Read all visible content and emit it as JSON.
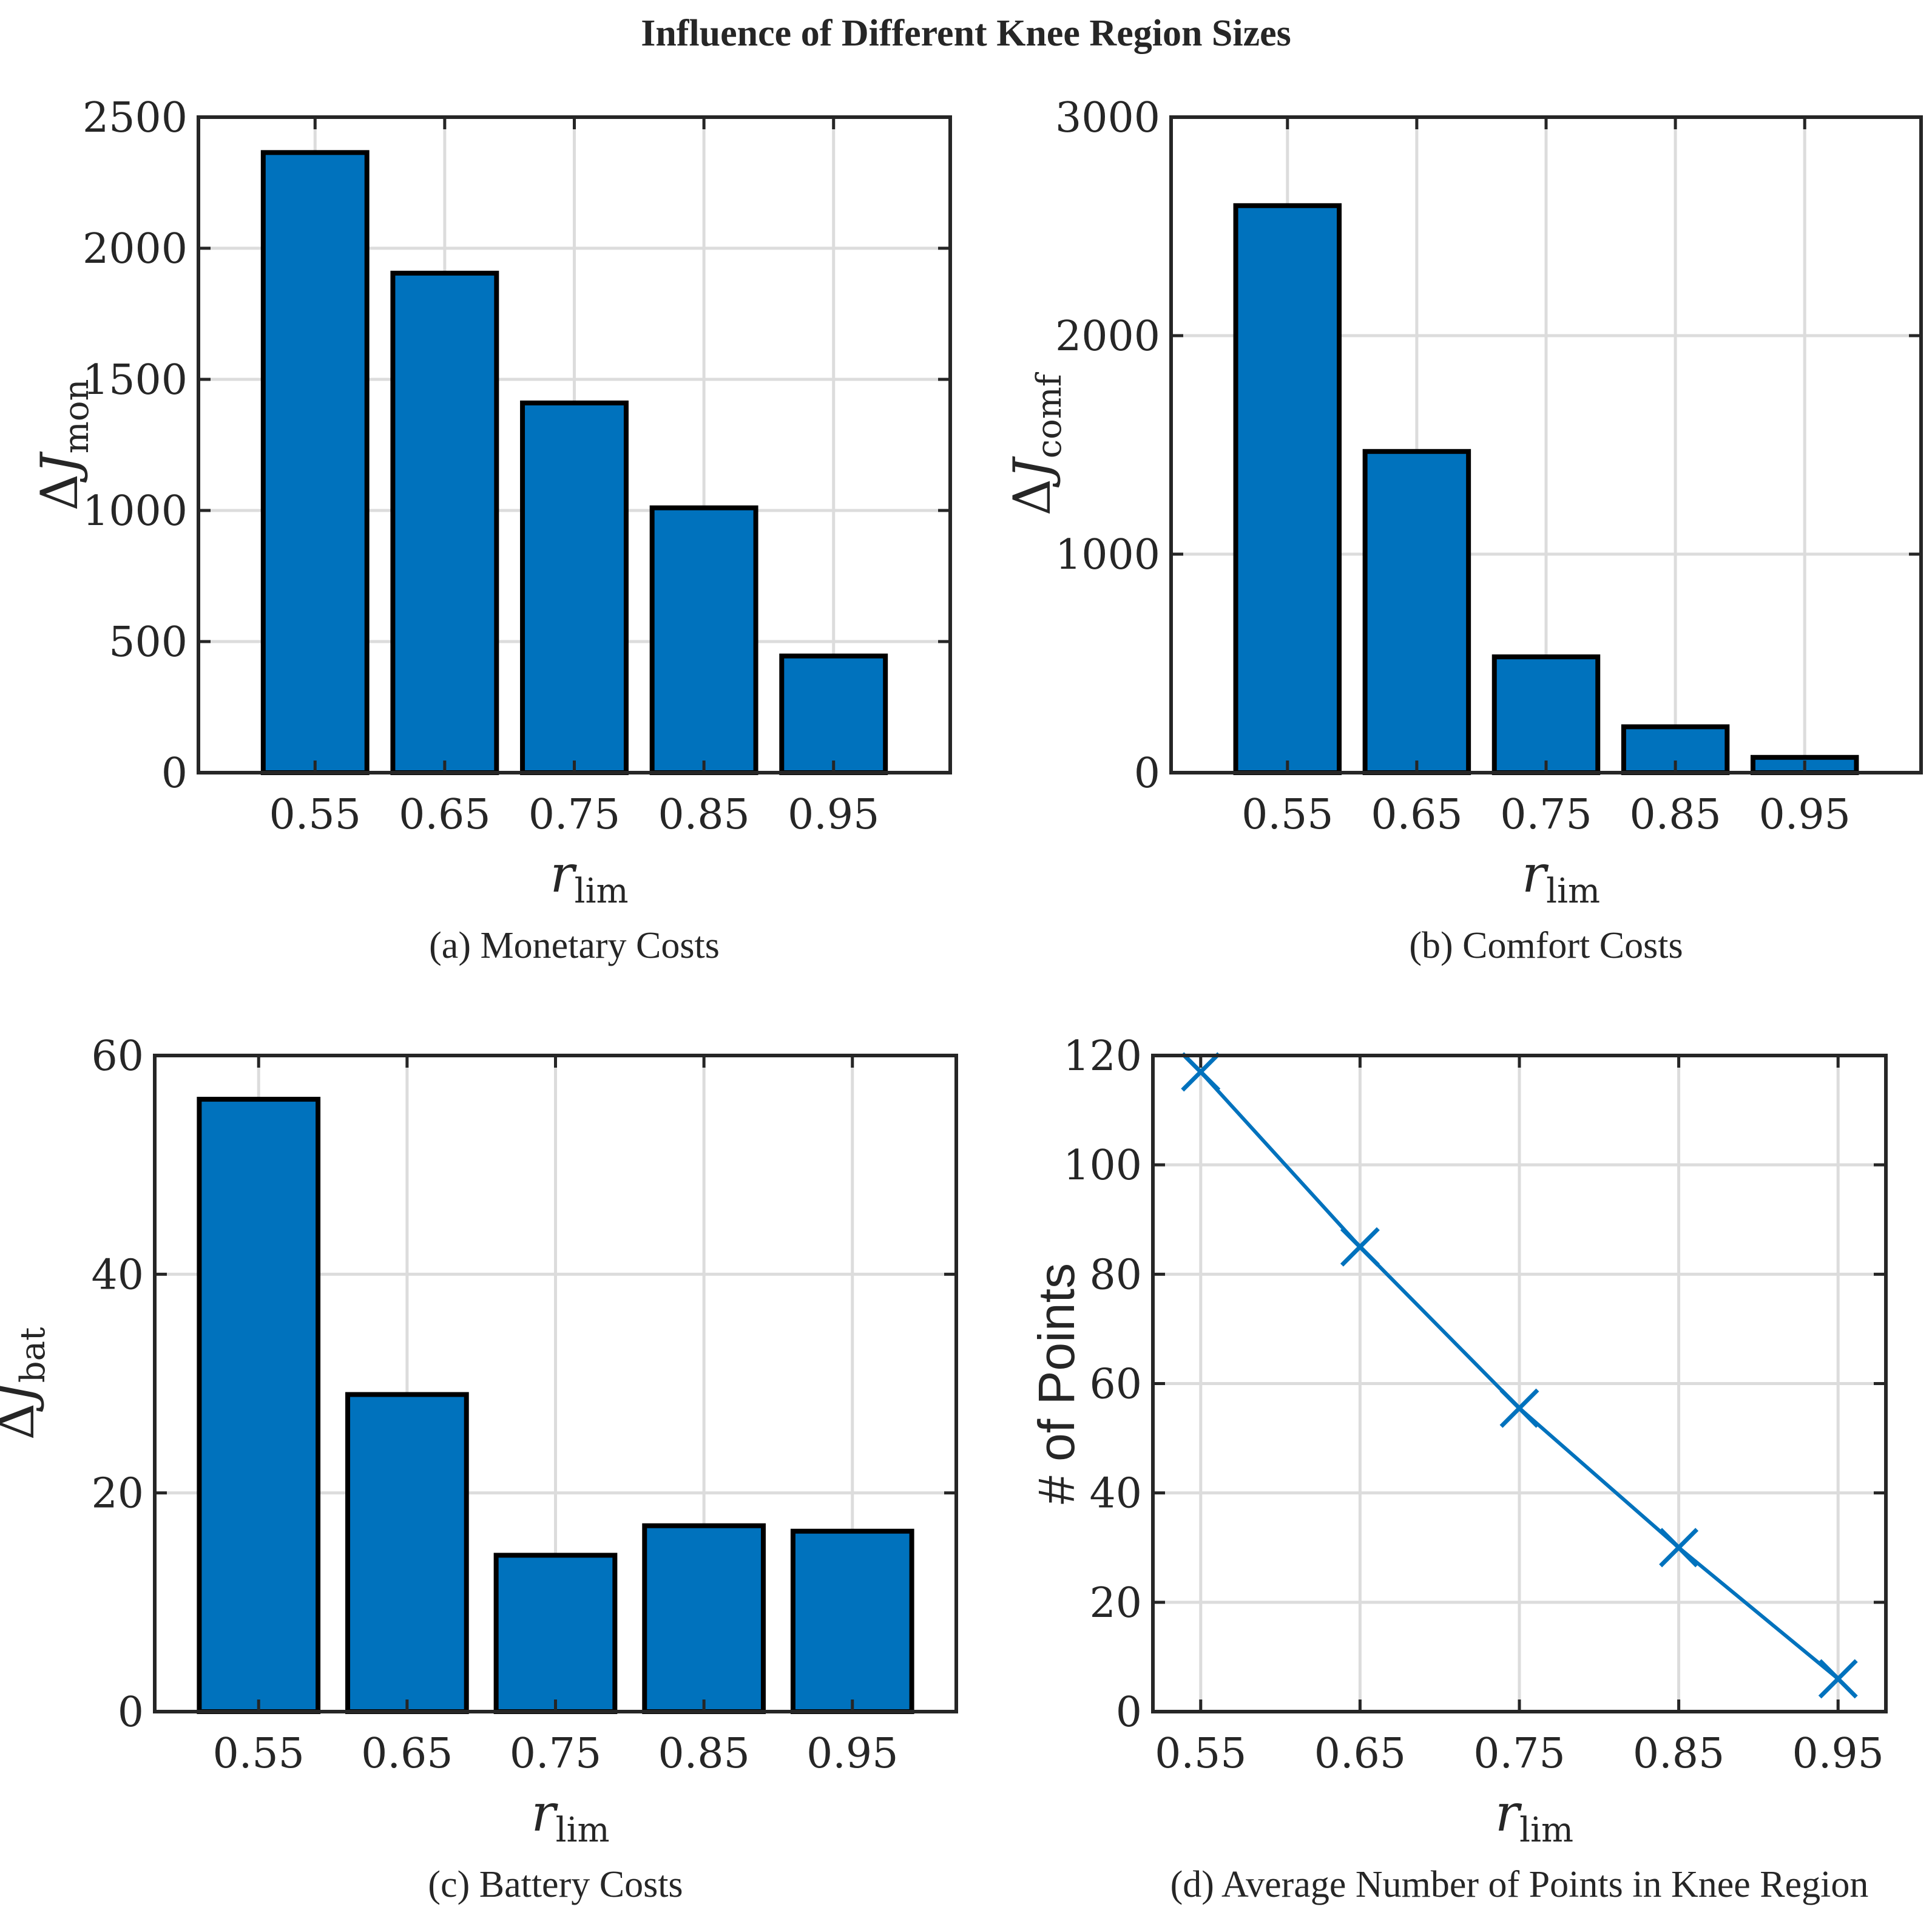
{
  "figure_title": "Influence of Different Knee Region Sizes",
  "colors": {
    "bar": "#0072BD",
    "line": "#0072BD",
    "axis": "#262626",
    "grid": "#dcdcdc"
  },
  "chart_data": [
    {
      "id": "a",
      "type": "bar",
      "caption": "(a)  Monetary Costs",
      "categories": [
        "0.55",
        "0.65",
        "0.75",
        "0.85",
        "0.95"
      ],
      "values": [
        2365,
        1905,
        1410,
        1010,
        445
      ],
      "ylim": [
        0,
        2500
      ],
      "yticks": [
        0,
        500,
        1000,
        1500,
        2000,
        2500
      ],
      "xlabel": {
        "main": "r",
        "sub": "lim"
      },
      "ylabel": {
        "prefix": "Δ",
        "main": "J",
        "sub": "mon"
      },
      "grid": true
    },
    {
      "id": "b",
      "type": "bar",
      "caption": "(b)  Comfort Costs",
      "categories": [
        "0.55",
        "0.65",
        "0.75",
        "0.85",
        "0.95"
      ],
      "values": [
        2595,
        1470,
        530,
        210,
        70
      ],
      "ylim": [
        0,
        3000
      ],
      "yticks": [
        0,
        1000,
        2000,
        3000
      ],
      "xlabel": {
        "main": "r",
        "sub": "lim"
      },
      "ylabel": {
        "prefix": "Δ",
        "main": "J",
        "sub": "comf"
      },
      "grid": true
    },
    {
      "id": "c",
      "type": "bar",
      "caption": "(c)  Battery Costs",
      "categories": [
        "0.55",
        "0.65",
        "0.75",
        "0.85",
        "0.95"
      ],
      "values": [
        56,
        29,
        14.3,
        17,
        16.5
      ],
      "ylim": [
        0,
        60
      ],
      "yticks": [
        0,
        20,
        40,
        60
      ],
      "xlabel": {
        "main": "r",
        "sub": "lim"
      },
      "ylabel": {
        "prefix": "Δ",
        "main": "J",
        "sub": "bat"
      },
      "grid": true
    },
    {
      "id": "d",
      "type": "line",
      "caption": "(d)  Average Number of Points in Knee Region",
      "x": [
        0.55,
        0.65,
        0.75,
        0.85,
        0.95
      ],
      "xticklabels": [
        "0.55",
        "0.65",
        "0.75",
        "0.85",
        "0.95"
      ],
      "values": [
        117,
        85,
        55.5,
        30,
        6
      ],
      "marker": "x",
      "ylim": [
        0,
        120
      ],
      "yticks": [
        0,
        20,
        40,
        60,
        80,
        100,
        120
      ],
      "xlabel": {
        "main": "r",
        "sub": "lim"
      },
      "ylabel": {
        "text": "# of Points"
      },
      "grid": true
    }
  ]
}
